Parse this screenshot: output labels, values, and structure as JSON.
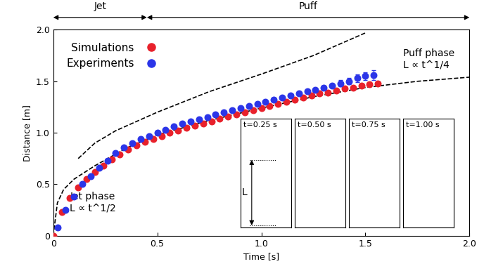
{
  "chart_data": {
    "type": "scatter",
    "x_label": "Time [s]",
    "y_label": "Distance [m]",
    "xlim": [
      0,
      2.0
    ],
    "ylim": [
      0,
      2.0
    ],
    "xticks": [
      0,
      {
        "value": 0.5,
        "label": "0.5"
      },
      {
        "value": 1.0,
        "label": "1.0"
      },
      {
        "value": 1.5,
        "label": "1.5"
      },
      {
        "value": 2.0,
        "label": "2.0"
      }
    ],
    "yticks": [
      0,
      {
        "value": 0.5,
        "label": "0.5"
      },
      {
        "value": 1.0,
        "label": "1.0"
      },
      {
        "value": 1.5,
        "label": "1.5"
      },
      {
        "value": 2.0,
        "label": "2.0"
      }
    ],
    "legend": "upper left",
    "series": [
      {
        "name": "Simulations",
        "type": "scatter",
        "color": "#e8212b",
        "marker": "circle",
        "x": [
          0,
          0.04,
          0.08,
          0.12,
          0.16,
          0.2,
          0.24,
          0.28,
          0.32,
          0.36,
          0.4,
          0.44,
          0.48,
          0.52,
          0.56,
          0.6,
          0.64,
          0.68,
          0.72,
          0.76,
          0.8,
          0.84,
          0.88,
          0.92,
          0.96,
          1.0,
          1.04,
          1.08,
          1.12,
          1.16,
          1.2,
          1.24,
          1.28,
          1.32,
          1.36,
          1.4,
          1.44,
          1.48,
          1.52,
          1.56
        ],
        "values": [
          0,
          0.23,
          0.37,
          0.47,
          0.55,
          0.62,
          0.68,
          0.74,
          0.79,
          0.84,
          0.88,
          0.91,
          0.94,
          0.97,
          1.0,
          1.02,
          1.05,
          1.07,
          1.09,
          1.11,
          1.14,
          1.16,
          1.18,
          1.2,
          1.22,
          1.24,
          1.26,
          1.28,
          1.3,
          1.32,
          1.34,
          1.36,
          1.38,
          1.39,
          1.41,
          1.43,
          1.44,
          1.46,
          1.47,
          1.48
        ]
      },
      {
        "name": "Experiments",
        "type": "scatter",
        "color": "#2b35e8",
        "marker": "circle",
        "x": [
          0.02,
          0.06,
          0.1,
          0.14,
          0.18,
          0.22,
          0.26,
          0.3,
          0.34,
          0.38,
          0.42,
          0.46,
          0.5,
          0.54,
          0.58,
          0.62,
          0.66,
          0.7,
          0.74,
          0.78,
          0.82,
          0.86,
          0.9,
          0.94,
          0.98,
          1.02,
          1.06,
          1.1,
          1.14,
          1.18,
          1.22,
          1.26,
          1.3,
          1.34,
          1.38,
          1.42,
          1.46,
          1.5,
          1.54
        ],
        "values": [
          0.08,
          0.25,
          0.38,
          0.5,
          0.58,
          0.66,
          0.73,
          0.8,
          0.86,
          0.9,
          0.94,
          0.97,
          1.0,
          1.03,
          1.06,
          1.09,
          1.11,
          1.13,
          1.15,
          1.18,
          1.2,
          1.22,
          1.24,
          1.26,
          1.28,
          1.3,
          1.32,
          1.34,
          1.36,
          1.38,
          1.4,
          1.42,
          1.44,
          1.46,
          1.48,
          1.5,
          1.53,
          1.55,
          1.56
        ],
        "errors": [
          0,
          0,
          0,
          0,
          0,
          0,
          0,
          0,
          0,
          0,
          0,
          0,
          0,
          0,
          0,
          0,
          0,
          0,
          0,
          0,
          0,
          0,
          0,
          0,
          0,
          0,
          0,
          0,
          0,
          0,
          0,
          0,
          0.02,
          0.02,
          0.03,
          0.03,
          0.04,
          0.04,
          0.05
        ]
      },
      {
        "type": "line",
        "color": "#000000",
        "line_style": "dashed",
        "x": [
          0.12,
          0.2,
          0.3,
          0.5,
          0.75,
          1.0,
          1.25,
          1.5
        ],
        "values": [
          0.75,
          0.9,
          1.02,
          1.2,
          1.4,
          1.57,
          1.75,
          1.97
        ]
      },
      {
        "type": "line",
        "color": "#000000",
        "line_style": "dashed",
        "x": [
          0.0,
          0.02,
          0.05,
          0.1,
          0.2,
          0.35,
          0.5,
          0.75,
          1.0,
          1.25,
          1.5,
          1.75,
          2.0
        ],
        "values": [
          0.0,
          0.32,
          0.45,
          0.55,
          0.68,
          0.85,
          0.98,
          1.12,
          1.24,
          1.35,
          1.44,
          1.5,
          1.54
        ]
      }
    ],
    "annotations": [
      {
        "text": "Jet phase",
        "x": 0.08,
        "y": 0.38
      },
      {
        "text": "L ∝ t^1/2",
        "x": 0.08,
        "y": 0.27
      },
      {
        "text": "Puff phase",
        "x": 1.68,
        "y": 1.77
      },
      {
        "text": "L ∝ t^1/4",
        "x": 1.68,
        "y": 1.66
      }
    ],
    "regions": [
      {
        "label": "Jet",
        "start": 0,
        "end": 0.45
      },
      {
        "label": "Puff",
        "start": 0.45,
        "end": 2.0
      }
    ],
    "insets": [
      "t=0.25 s",
      "t=0.50 s",
      "t=0.75 s",
      "t=1.00 s"
    ],
    "inset_symbol": "L"
  }
}
